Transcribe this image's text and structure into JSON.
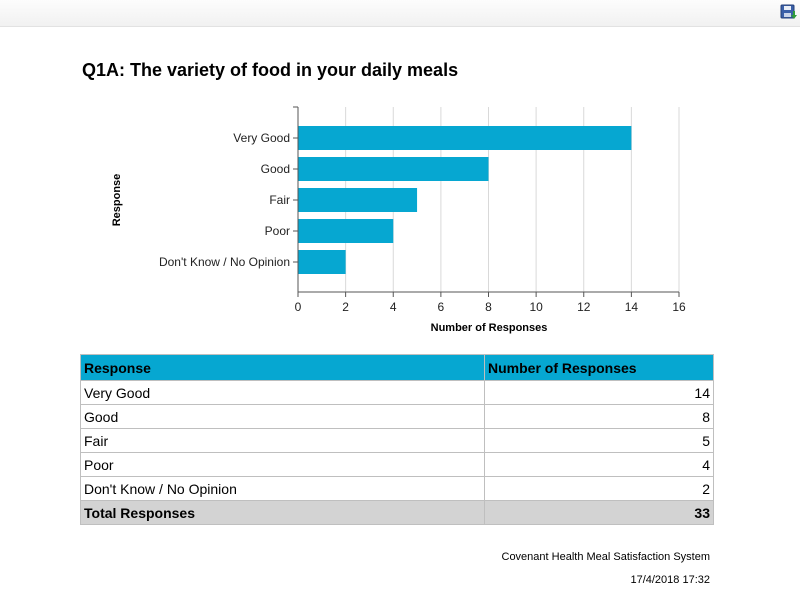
{
  "header": {
    "save_icon": "save-disk-icon"
  },
  "title": "Q1A: The variety of food in your daily meals",
  "chart_data": {
    "type": "bar",
    "orientation": "horizontal",
    "categories": [
      "Very Good",
      "Good",
      "Fair",
      "Poor",
      "Don't Know / No Opinion"
    ],
    "values": [
      14,
      8,
      5,
      4,
      2
    ],
    "xlabel": "Number of Responses",
    "ylabel": "Response",
    "xlim": [
      0,
      16
    ],
    "xticks": [
      "0",
      "2",
      "4",
      "6",
      "8",
      "10",
      "12",
      "14",
      "16"
    ],
    "grid": true,
    "legend": "none",
    "bar_color": "#06a7d1"
  },
  "table": {
    "headers": [
      "Response",
      "Number of Responses"
    ],
    "rows": [
      {
        "label": "Very Good",
        "count": "14"
      },
      {
        "label": "Good",
        "count": "8"
      },
      {
        "label": "Fair",
        "count": "5"
      },
      {
        "label": "Poor",
        "count": "4"
      },
      {
        "label": "Don't Know / No Opinion",
        "count": "2"
      }
    ],
    "total": {
      "label": "Total Responses",
      "count": "33"
    }
  },
  "footer": {
    "organization": "Covenant Health Meal Satisfaction System",
    "timestamp": "17/4/2018 17:32"
  }
}
